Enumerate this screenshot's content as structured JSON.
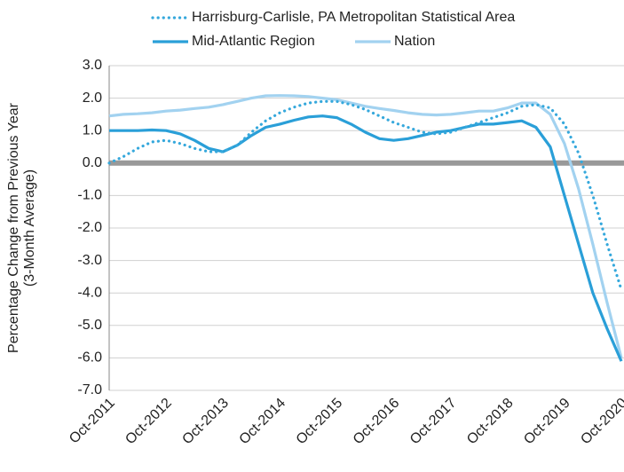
{
  "chart_data": {
    "type": "line",
    "y_label": [
      "Percentage Change from Previous Year",
      "(3-Month Average)"
    ],
    "categories": [
      "Oct-2011",
      null,
      null,
      null,
      "Oct-2012",
      null,
      null,
      null,
      "Oct-2013",
      null,
      null,
      null,
      "Oct-2014",
      null,
      null,
      null,
      "Oct-2015",
      null,
      null,
      null,
      "Oct-2016",
      null,
      null,
      null,
      "Oct-2017",
      null,
      null,
      null,
      "Oct-2018",
      null,
      null,
      null,
      "Oct-2019",
      null,
      null,
      null,
      "Oct-2020"
    ],
    "series": [
      {
        "name": "Harrisburg-Carlisle, PA Metropolitan Statistical Area",
        "color": "#35a8dc",
        "style": "dotted",
        "values": [
          0.0,
          0.2,
          0.45,
          0.65,
          0.7,
          0.6,
          0.45,
          0.35,
          0.35,
          0.55,
          0.95,
          1.3,
          1.55,
          1.72,
          1.85,
          1.9,
          1.9,
          1.8,
          1.65,
          1.45,
          1.25,
          1.1,
          0.95,
          0.9,
          0.95,
          1.1,
          1.25,
          1.4,
          1.55,
          1.75,
          1.8,
          1.7,
          1.2,
          0.3,
          -1.0,
          -2.5,
          -3.9
        ]
      },
      {
        "name": "Mid-Atlantic Region",
        "color": "#2a9fd8",
        "style": "solid",
        "values": [
          1.0,
          1.0,
          1.0,
          1.02,
          1.0,
          0.9,
          0.7,
          0.45,
          0.35,
          0.55,
          0.85,
          1.1,
          1.2,
          1.32,
          1.42,
          1.45,
          1.4,
          1.2,
          0.95,
          0.75,
          0.7,
          0.75,
          0.85,
          0.95,
          1.0,
          1.1,
          1.2,
          1.2,
          1.25,
          1.3,
          1.1,
          0.5,
          -1.0,
          -2.5,
          -4.0,
          -5.1,
          -6.1
        ]
      },
      {
        "name": "Nation",
        "color": "#a2d2f0",
        "style": "solid",
        "values": [
          1.45,
          1.5,
          1.52,
          1.55,
          1.6,
          1.63,
          1.68,
          1.72,
          1.8,
          1.9,
          2.0,
          2.07,
          2.08,
          2.07,
          2.05,
          2.0,
          1.95,
          1.85,
          1.75,
          1.68,
          1.62,
          1.55,
          1.5,
          1.48,
          1.5,
          1.55,
          1.6,
          1.6,
          1.7,
          1.85,
          1.85,
          1.5,
          0.6,
          -0.8,
          -2.5,
          -4.3,
          -6.0
        ]
      }
    ],
    "ylim": [
      -7,
      3
    ],
    "yticks": [
      {
        "value": -7,
        "label": "-7.0"
      },
      {
        "value": -6,
        "label": "-6.0"
      },
      {
        "value": -5,
        "label": "-5.0"
      },
      {
        "value": -4,
        "label": "-4.0"
      },
      {
        "value": -3,
        "label": "-3.0"
      },
      {
        "value": -2,
        "label": "-2.0"
      },
      {
        "value": -1,
        "label": "-1.0"
      },
      {
        "value": 0,
        "label": "0.0"
      },
      {
        "value": 1,
        "label": "1.0"
      },
      {
        "value": 2,
        "label": "2.0"
      },
      {
        "value": 3,
        "label": "3.0"
      }
    ],
    "grid": true,
    "zero_line": true,
    "legend": "top"
  }
}
